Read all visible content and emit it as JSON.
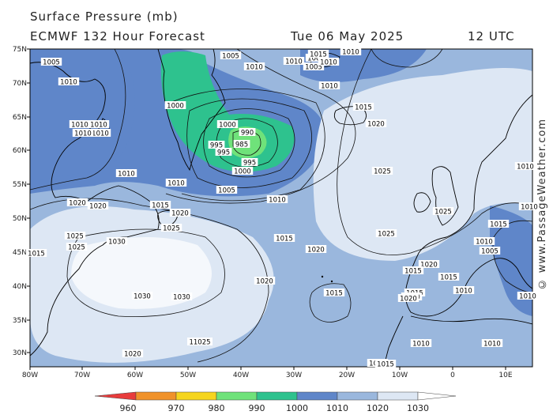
{
  "header": {
    "line1": "Surface Pressure (mb)",
    "line2": "ECMWF 132 Hour Forecast",
    "date": "Tue 06 May 2025",
    "time": "12 UTC"
  },
  "credit": "© www.PassageWeather.com",
  "map": {
    "lat_labels": [
      "75N",
      "70N",
      "65N",
      "60N",
      "55N",
      "50N",
      "45N",
      "40N",
      "35N",
      "30N"
    ],
    "lon_labels": [
      "80W",
      "70W",
      "60W",
      "50W",
      "40W",
      "30W",
      "20W",
      "10W",
      "0",
      "10E"
    ],
    "isobar_labels": [
      {
        "text": "1005"
      },
      {
        "text": "1005"
      },
      {
        "text": "1010"
      },
      {
        "text": "1005"
      },
      {
        "text": "1010"
      },
      {
        "text": "1010"
      },
      {
        "text": "1005"
      },
      {
        "text": "1005"
      },
      {
        "text": "1010"
      },
      {
        "text": "1010"
      },
      {
        "text": "1010"
      },
      {
        "text": "1010"
      },
      {
        "text": "1010"
      },
      {
        "text": "1000"
      },
      {
        "text": "1000"
      },
      {
        "text": "990"
      },
      {
        "text": "995"
      },
      {
        "text": "985"
      },
      {
        "text": "995"
      },
      {
        "text": "995"
      },
      {
        "text": "1000"
      },
      {
        "text": "1005"
      },
      {
        "text": "1010"
      },
      {
        "text": "1010"
      },
      {
        "text": "1010"
      },
      {
        "text": "1015"
      },
      {
        "text": "1020"
      },
      {
        "text": "1025"
      },
      {
        "text": "1020"
      },
      {
        "text": "1020"
      },
      {
        "text": "1015"
      },
      {
        "text": "1020"
      },
      {
        "text": "1025"
      },
      {
        "text": "1025"
      },
      {
        "text": "1030"
      },
      {
        "text": "1025"
      },
      {
        "text": "1015"
      },
      {
        "text": "1030"
      },
      {
        "text": "1030"
      },
      {
        "text": "1020"
      },
      {
        "text": "1015"
      },
      {
        "text": "1020"
      },
      {
        "text": "1025"
      },
      {
        "text": "1025"
      },
      {
        "text": "1015"
      },
      {
        "text": "1010"
      },
      {
        "text": "1005"
      },
      {
        "text": "1010"
      },
      {
        "text": "1020"
      },
      {
        "text": "1015"
      },
      {
        "text": "1015"
      },
      {
        "text": "1010"
      },
      {
        "text": "1020"
      },
      {
        "text": "1015"
      },
      {
        "text": "1015"
      },
      {
        "text": "11025"
      },
      {
        "text": "1020"
      },
      {
        "text": "1010"
      },
      {
        "text": "1010"
      },
      {
        "text": "1015"
      },
      {
        "text": "1015"
      },
      {
        "text": "1010"
      },
      {
        "text": "1010"
      },
      {
        "text": "1015"
      },
      {
        "text": "1010"
      },
      {
        "text": "1010"
      },
      {
        "text": "1010"
      }
    ]
  },
  "colorbar": {
    "ticks": [
      "960",
      "970",
      "980",
      "990",
      "1000",
      "1010",
      "1020",
      "1030"
    ],
    "colors": [
      "#e83c3c",
      "#f0922a",
      "#f5d51e",
      "#6fe27a",
      "#2ec28e",
      "#5f86c9",
      "#9ab7dd",
      "#dde7f4"
    ]
  }
}
